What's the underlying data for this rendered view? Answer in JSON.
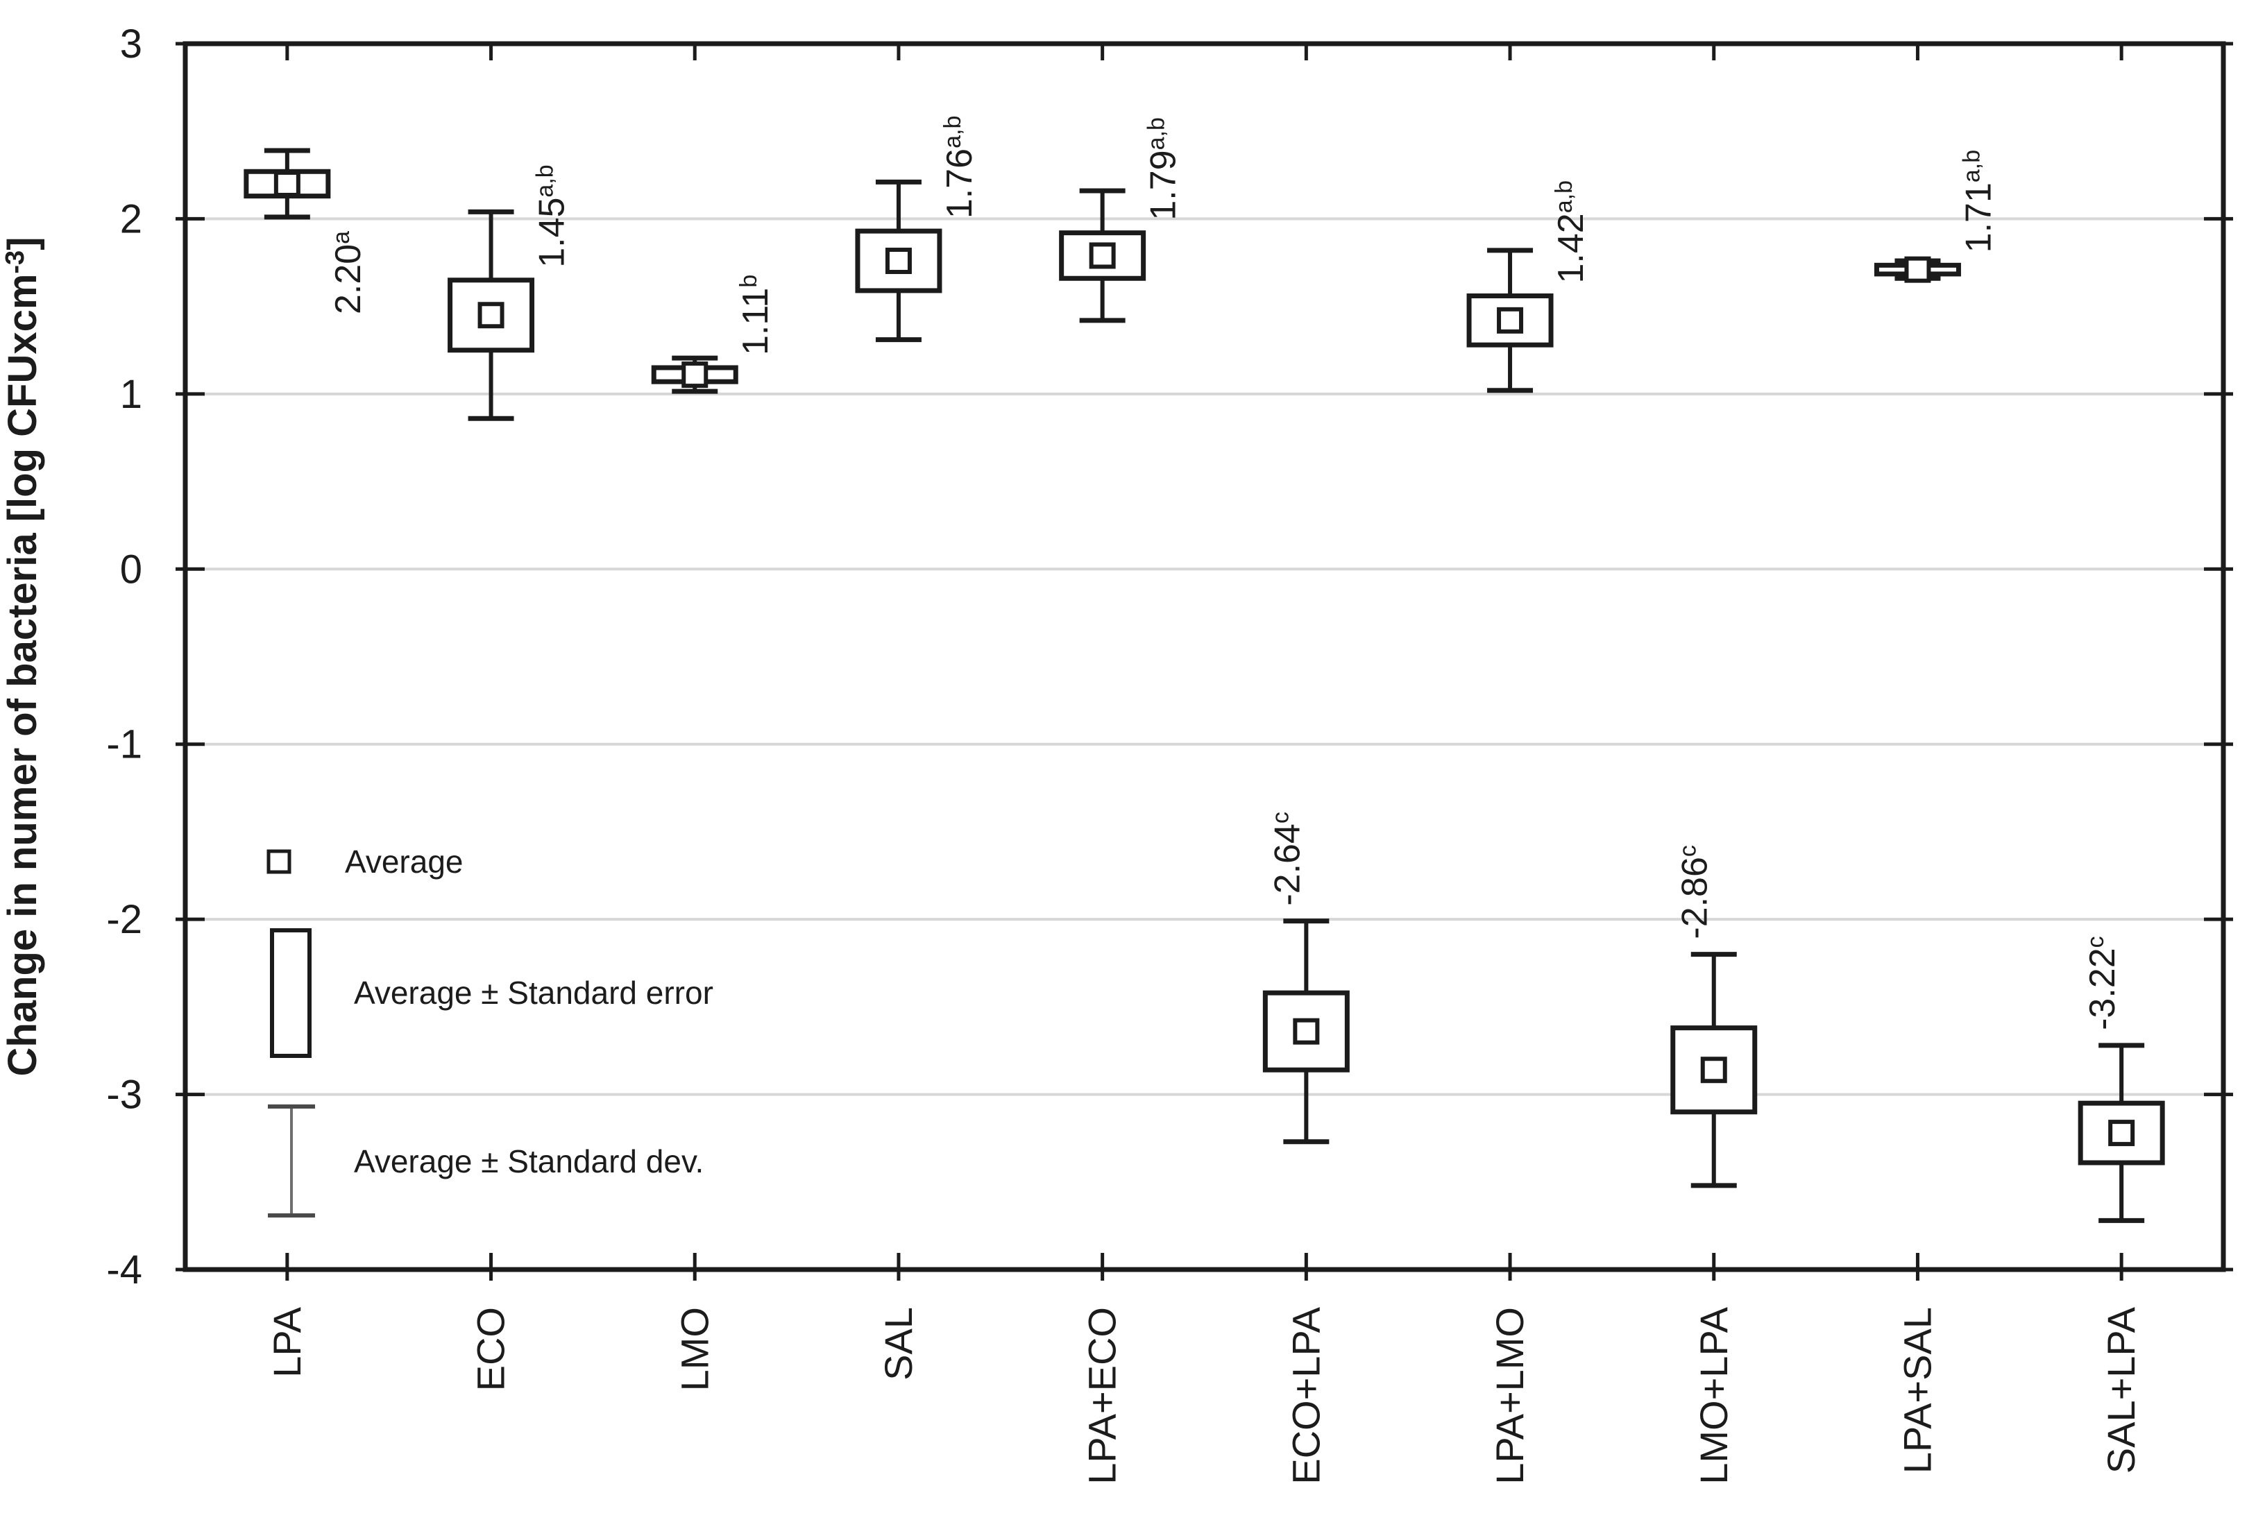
{
  "chart_data": {
    "type": "box-whisker",
    "title": "",
    "ylabel_prefix": "Change in numer of bacteria [log CFUxcm",
    "ylabel_sup": "-3",
    "ylabel_suffix": "]",
    "ylim": [
      -4,
      3
    ],
    "yticks": [
      "3",
      "2",
      "1",
      "0",
      "-1",
      "-2",
      "-3",
      "-4"
    ],
    "grid": "horizontal-light-gray",
    "legend_position": "inside-lower-left",
    "marker_semantics": {
      "square_marker": "Average",
      "box": "Average ± Standard error",
      "whisker": "Average ± Standard dev."
    },
    "categories": [
      "LPA",
      "ECO",
      "LMO",
      "SAL",
      "LPA+ECO",
      "ECO+LPA",
      "LPA+LMO",
      "LMO+LPA",
      "LPA+SAL",
      "SAL+LPA"
    ],
    "points": [
      {
        "category": "LPA",
        "average": 2.2,
        "value_label": "2.20",
        "sup": "a",
        "std_error": 0.07,
        "std_dev": 0.19,
        "label_placement": "below"
      },
      {
        "category": "ECO",
        "average": 1.45,
        "value_label": "1.45",
        "sup": "a,b",
        "std_error": 0.2,
        "std_dev": 0.59,
        "label_placement": "above"
      },
      {
        "category": "LMO",
        "average": 1.11,
        "value_label": "1.11",
        "sup": "b",
        "std_error": 0.04,
        "std_dev": 0.095,
        "label_placement": "above"
      },
      {
        "category": "SAL",
        "average": 1.76,
        "value_label": "1.76",
        "sup": "a,b",
        "std_error": 0.17,
        "std_dev": 0.45,
        "label_placement": "above"
      },
      {
        "category": "LPA+ECO",
        "average": 1.79,
        "value_label": "1.79",
        "sup": "a,b",
        "std_error": 0.13,
        "std_dev": 0.37,
        "label_placement": "above"
      },
      {
        "category": "ECO+LPA",
        "average": -2.64,
        "value_label": "-2.64",
        "sup": "c",
        "std_error": 0.22,
        "std_dev": 0.63,
        "label_placement": "above-neg"
      },
      {
        "category": "LPA+LMO",
        "average": 1.42,
        "value_label": "1.42",
        "sup": "a,b",
        "std_error": 0.14,
        "std_dev": 0.4,
        "label_placement": "above"
      },
      {
        "category": "LMO+LPA",
        "average": -2.86,
        "value_label": "-2.86",
        "sup": "c",
        "std_error": 0.24,
        "std_dev": 0.66,
        "label_placement": "above-neg"
      },
      {
        "category": "LPA+SAL",
        "average": 1.71,
        "value_label": "1.71",
        "sup": "a,b",
        "std_error": 0.025,
        "std_dev": 0.05,
        "label_placement": "above"
      },
      {
        "category": "SAL+LPA",
        "average": -3.22,
        "value_label": "-3.22",
        "sup": "c",
        "std_error": 0.17,
        "std_dev": 0.5,
        "label_placement": "above-neg"
      }
    ],
    "legend": {
      "items": [
        {
          "symbol": "square-marker",
          "label": "Average"
        },
        {
          "symbol": "box",
          "label": "Average ± Standard error"
        },
        {
          "symbol": "whisker",
          "label": "Average ± Standard dev."
        }
      ]
    },
    "colors": {
      "line": "#1b1b1b",
      "grid": "#d7d7d7",
      "text": "#1c1c1c",
      "axis_title": "#2e2e2e",
      "legend_whisker": "#6f6f6f",
      "background": "#ffffff"
    }
  }
}
